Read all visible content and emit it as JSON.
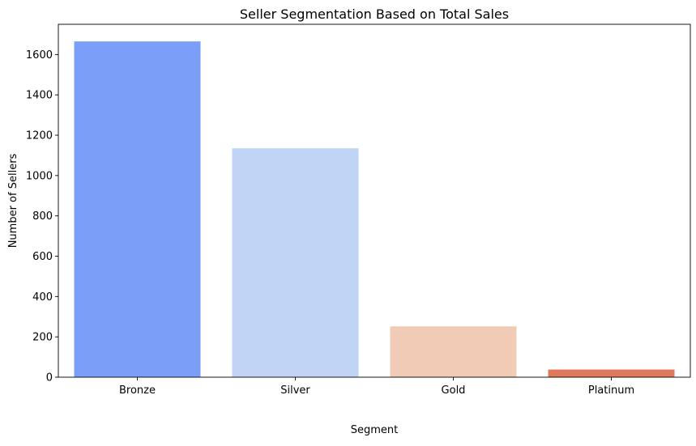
{
  "chart_data": {
    "type": "bar",
    "title": "Seller Segmentation Based on Total Sales",
    "xlabel": "Segment",
    "ylabel": "Number of Sellers",
    "categories": [
      "Bronze",
      "Silver",
      "Gold",
      "Platinum"
    ],
    "values": [
      1665,
      1135,
      252,
      38
    ],
    "colors": [
      "#7b9ff9",
      "#c0d4f5",
      "#f2cbb7",
      "#e0785b"
    ],
    "ylim": [
      0,
      1750
    ],
    "yticks": [
      0,
      200,
      400,
      600,
      800,
      1000,
      1200,
      1400,
      1600
    ],
    "grid": false,
    "legend": "none"
  }
}
